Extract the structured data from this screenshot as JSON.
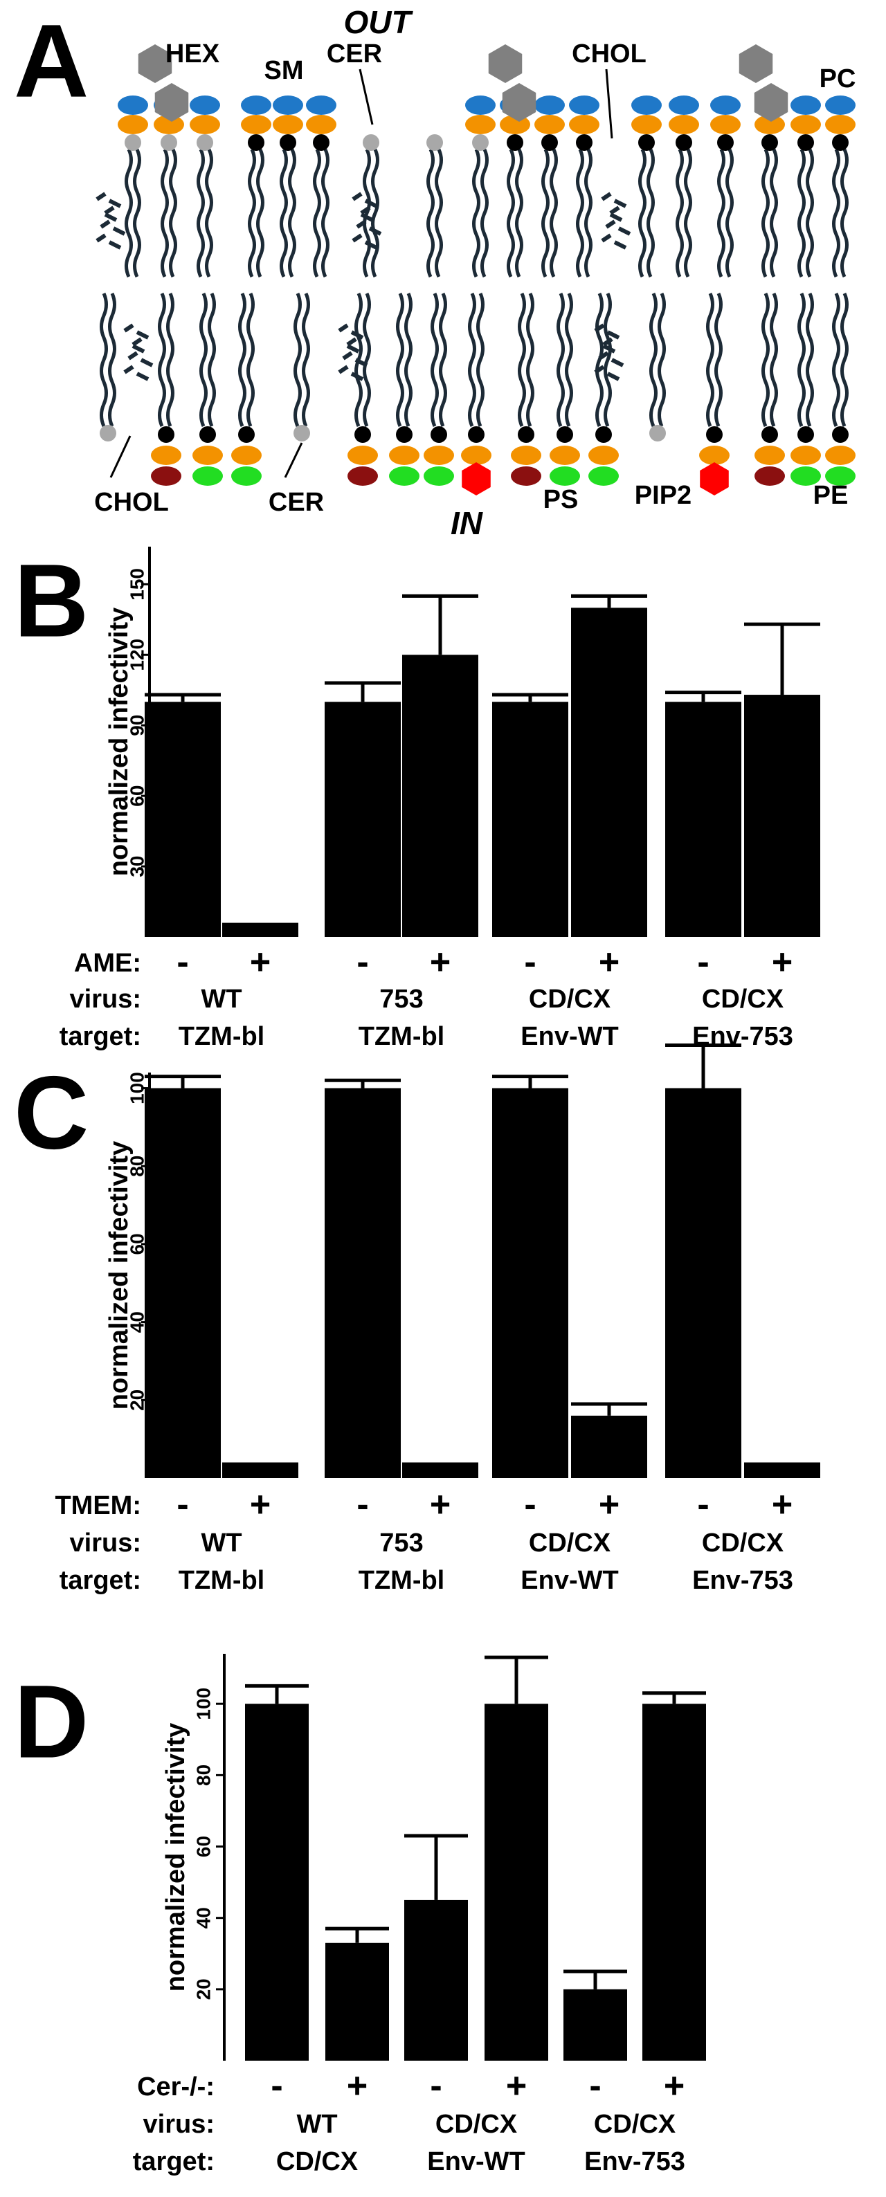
{
  "diagram": {
    "panel_label": "A",
    "outside": "OUT",
    "inside": "IN",
    "labels": [
      "HEX",
      "SM",
      "CER",
      "CHOL",
      "PC",
      "CHOL",
      "CER",
      "PS",
      "PIP2",
      "PE"
    ]
  },
  "chart_data": [
    {
      "type": "bar",
      "panel_label": "B",
      "y_label": "normalized infectivity",
      "ylim": [
        0,
        166
      ],
      "yticks": [
        30,
        60,
        90,
        120,
        150
      ],
      "color": "#000000",
      "values": [
        100,
        6,
        100,
        120,
        100,
        140,
        100,
        103
      ],
      "errors": [
        3,
        0,
        8,
        25,
        3,
        5,
        4,
        30
      ],
      "row_labels": [
        "AME:",
        "virus:",
        "target:"
      ],
      "treatments": [
        "-",
        "+",
        "-",
        "+",
        "-",
        "+",
        "-",
        "+"
      ],
      "groups": [
        {
          "virus": "WT",
          "target": "TZM-bl"
        },
        {
          "virus": "753",
          "target": "TZM-bl"
        },
        {
          "virus": "CD/CX",
          "target": "Env-WT"
        },
        {
          "virus": "CD/CX",
          "target": "Env-753"
        }
      ]
    },
    {
      "type": "bar",
      "panel_label": "C",
      "y_label": "normalized infectivity",
      "ylim": [
        0,
        104
      ],
      "yticks": [
        20,
        40,
        60,
        80,
        100
      ],
      "color": "#000000",
      "values": [
        100,
        4,
        100,
        4,
        100,
        16,
        100,
        4
      ],
      "errors": [
        3,
        0,
        2,
        0,
        3,
        3,
        11,
        0
      ],
      "row_labels": [
        "TMEM:",
        "virus:",
        "target:"
      ],
      "treatments": [
        "-",
        "+",
        "-",
        "+",
        "-",
        "+",
        "-",
        "+"
      ],
      "groups": [
        {
          "virus": "WT",
          "target": "TZM-bl"
        },
        {
          "virus": "753",
          "target": "TZM-bl"
        },
        {
          "virus": "CD/CX",
          "target": "Env-WT"
        },
        {
          "virus": "CD/CX",
          "target": "Env-753"
        }
      ]
    },
    {
      "type": "bar",
      "panel_label": "D",
      "y_label": "normalized infectivity",
      "ylim": [
        0,
        114
      ],
      "yticks": [
        20,
        40,
        60,
        80,
        100
      ],
      "color": "#000000",
      "values": [
        100,
        33,
        45,
        100,
        20,
        100
      ],
      "errors": [
        5,
        4,
        18,
        13,
        5,
        3
      ],
      "row_labels": [
        "Cer-/-:",
        "virus:",
        "target:"
      ],
      "treatments": [
        "-",
        "+",
        "-",
        "+",
        "-",
        "+"
      ],
      "groups": [
        {
          "virus": "WT",
          "target": "CD/CX"
        },
        {
          "virus": "CD/CX",
          "target": "Env-WT"
        },
        {
          "virus": "CD/CX",
          "target": "Env-753"
        }
      ]
    }
  ]
}
